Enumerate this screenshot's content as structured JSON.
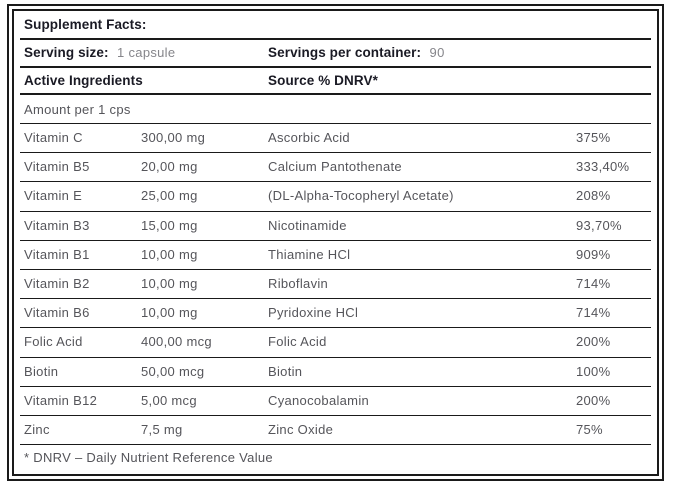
{
  "label": {
    "title": "Supplement Facts:",
    "serving": {
      "size_label": "Serving size:",
      "size_value": "1 capsule",
      "container_label": "Servings per container:",
      "container_value": "90"
    },
    "columns": {
      "active_ingredients": "Active Ingredients",
      "source_dnrv": "Source % DNRV*"
    },
    "amount_per": "Amount per 1 cps",
    "rows": [
      {
        "ingredient": "Vitamin C",
        "amount": "300,00 mg",
        "source": "Ascorbic Acid",
        "dnrv": "375%"
      },
      {
        "ingredient": "Vitamin B5",
        "amount": "20,00 mg",
        "source": "Calcium Pantothenate",
        "dnrv": "333,40%"
      },
      {
        "ingredient": "Vitamin E",
        "amount": "25,00 mg",
        "source": "(DL-Alpha-Tocopheryl Acetate)",
        "dnrv": "208%"
      },
      {
        "ingredient": "Vitamin B3",
        "amount": "15,00 mg",
        "source": "Nicotinamide",
        "dnrv": "93,70%"
      },
      {
        "ingredient": "Vitamin B1",
        "amount": "10,00 mg",
        "source": "Thiamine HCl",
        "dnrv": "909%"
      },
      {
        "ingredient": "Vitamin B2",
        "amount": "10,00 mg",
        "source": "Riboflavin",
        "dnrv": "714%"
      },
      {
        "ingredient": "Vitamin B6",
        "amount": "10,00 mg",
        "source": "Pyridoxine HCl",
        "dnrv": "714%"
      },
      {
        "ingredient": "Folic Acid",
        "amount": "400,00 mcg",
        "source": "Folic Acid",
        "dnrv": "200%"
      },
      {
        "ingredient": "Biotin",
        "amount": "50,00 mcg",
        "source": "Biotin",
        "dnrv": "100%"
      },
      {
        "ingredient": "Vitamin B12",
        "amount": "5,00 mcg",
        "source": "Cyanocobalamin",
        "dnrv": "200%"
      },
      {
        "ingredient": "Zinc",
        "amount": "7,5 mg",
        "source": "Zinc Oxide",
        "dnrv": "75%"
      }
    ],
    "footnote": "* DNRV – Daily Nutrient Reference Value"
  },
  "colors": {
    "border": "#1a1a1a",
    "heading_text": "#1a1a24",
    "body_text": "#55555a",
    "muted_text": "#85858a",
    "background": "#ffffff"
  }
}
